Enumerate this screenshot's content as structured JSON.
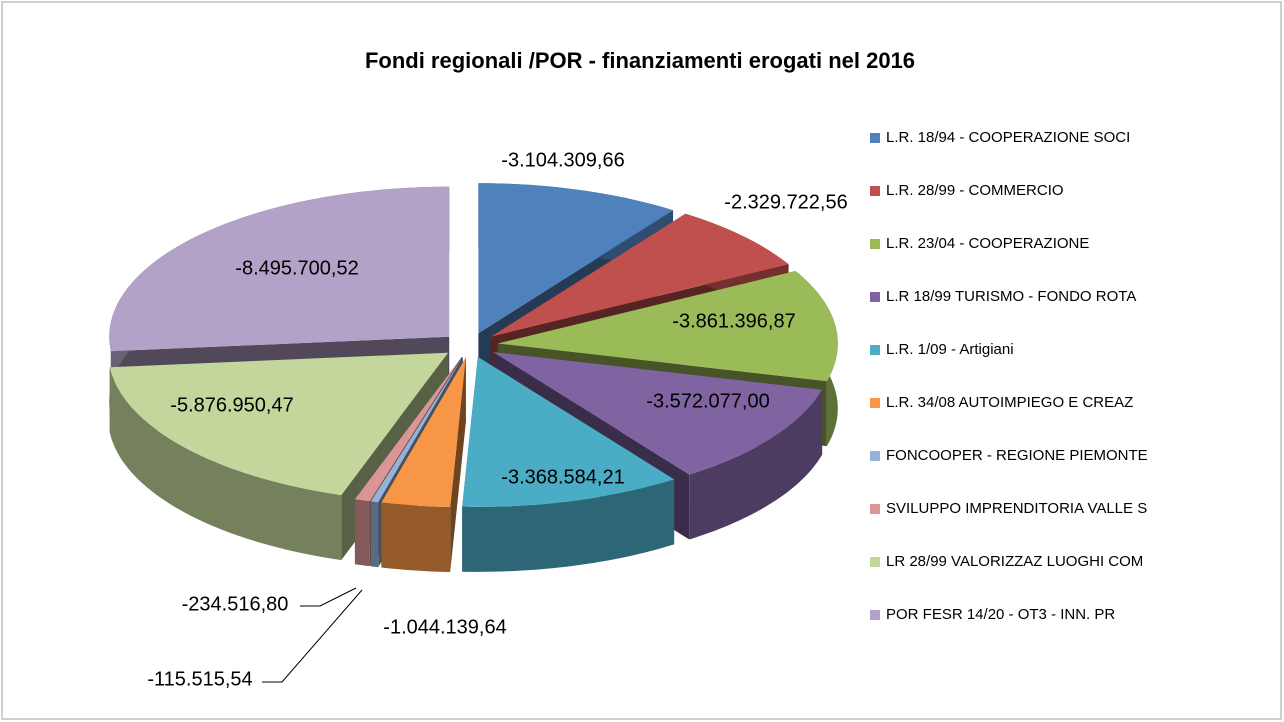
{
  "chart_data": {
    "type": "pie3d",
    "title": "Fondi regionali /POR - finanziamenti erogati nel 2016",
    "categories": [
      "L.R. 18/94 - COOPERAZIONE SOCI",
      "L.R. 28/99 - COMMERCIO",
      "L.R. 23/04 - COOPERAZIONE",
      "L.R 18/99 TURISMO - FONDO ROTA",
      "L.R. 1/09 - Artigiani",
      "L.R. 34/08 AUTOIMPIEGO E CREAZ",
      "FONCOOPER - REGIONE PIEMONTE",
      "SVILUPPO IMPRENDITORIA VALLE S",
      "LR 28/99 VALORIZZAZ LUOGHI COM",
      "POR FESR 14/20 - OT3 - INN. PR"
    ],
    "values": [
      -3104309.66,
      -2329722.56,
      -3861396.87,
      -3572077.0,
      -3368584.21,
      -1044139.64,
      -115515.54,
      -234516.8,
      -5876950.47,
      -8495700.52
    ],
    "value_labels": [
      "-3.104.309,66",
      "-2.329.722,56",
      "-3.861.396,87",
      "-3.572.077,00",
      "-3.368.584,21",
      "-1.044.139,64",
      "-115.515,54",
      "-234.516,80",
      "-5.876.950,47",
      "-8.495.700,52"
    ],
    "colors": [
      "#4f81bd",
      "#c0504d",
      "#9bbb59",
      "#8064a2",
      "#4bacc6",
      "#f79646",
      "#95b3d7",
      "#d99694",
      "#c3d69b",
      "#b3a2c7"
    ],
    "legend": "right"
  }
}
